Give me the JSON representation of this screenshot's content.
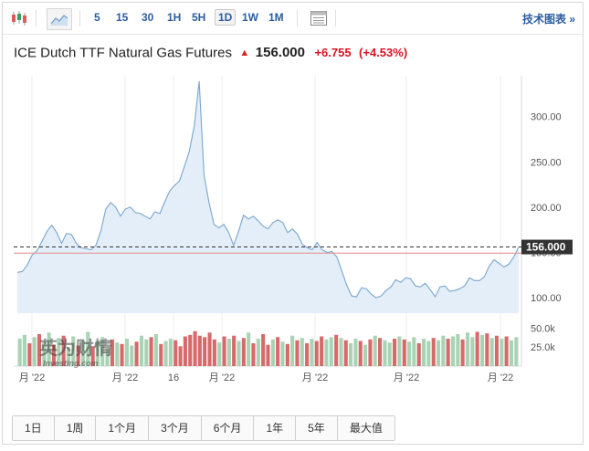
{
  "toolbar": {
    "candles_icon": "candlestick-icon",
    "area_icon": "area-chart-icon",
    "timeframes": [
      "5",
      "15",
      "30",
      "1H",
      "5H",
      "1D",
      "1W",
      "1M"
    ],
    "active_timeframe": "1D",
    "table_icon": "table-icon",
    "tech_link": "技术图表 »"
  },
  "quote": {
    "name": "ICE Dutch TTF Natural Gas Futures",
    "direction": "up",
    "price": "156.000",
    "change": "+6.755",
    "change_pct": "(+4.53%)"
  },
  "watermark": {
    "text": "英为财情",
    "sub": "Investing.com"
  },
  "ranges": [
    "1日",
    "1周",
    "1个月",
    "3个月",
    "6个月",
    "1年",
    "5年",
    "最大值"
  ],
  "colors": {
    "line": "#7aa6cf",
    "area": "#e3eef8",
    "up_volume": "#a9d3b4",
    "down_volume": "#d66a6a",
    "price_tag_bg": "#333333",
    "change": "#dd1111"
  },
  "chart_data": {
    "type": "area",
    "price_label": "156.000",
    "y_ticks": [
      "300.00",
      "250.00",
      "200.00",
      "150.00",
      "100.00"
    ],
    "volume_ticks": [
      "50.0k",
      "25.0k"
    ],
    "x_labels": [
      "月 '22",
      "月 '22",
      "16",
      "月 '22",
      "月 '22",
      "月 '22",
      "月 '22"
    ],
    "ylim": [
      83,
      345
    ],
    "volume_max": 60,
    "series": [
      {
        "values": [
          128,
          129,
          136,
          147,
          152,
          162,
          173,
          180,
          172,
          160,
          171,
          170,
          160,
          155,
          154,
          153,
          158,
          174,
          198,
          205,
          200,
          190,
          198,
          200,
          194,
          193,
          190,
          187,
          195,
          193,
          206,
          218,
          224,
          229,
          245,
          262,
          290,
          339,
          235,
          205,
          181,
          177,
          181,
          172,
          158,
          173,
          191,
          187,
          190,
          185,
          179,
          176,
          183,
          186,
          183,
          172,
          176,
          170,
          159,
          155,
          153,
          161,
          153,
          150,
          151,
          145,
          130,
          114,
          102,
          101,
          111,
          110,
          104,
          100,
          102,
          108,
          112,
          120,
          117,
          122,
          121,
          113,
          112,
          116,
          109,
          101,
          112,
          113,
          107,
          108,
          110,
          113,
          122,
          119,
          119,
          123,
          135,
          142,
          138,
          134,
          137,
          145,
          156
        ]
      }
    ],
    "volume": [
      {
        "v": 36,
        "d": "up"
      },
      {
        "v": 41,
        "d": "up"
      },
      {
        "v": 30,
        "d": "down"
      },
      {
        "v": 38,
        "d": "up"
      },
      {
        "v": 42,
        "d": "down"
      },
      {
        "v": 32,
        "d": "up"
      },
      {
        "v": 44,
        "d": "up"
      },
      {
        "v": 28,
        "d": "down"
      },
      {
        "v": 37,
        "d": "up"
      },
      {
        "v": 40,
        "d": "down"
      },
      {
        "v": 25,
        "d": "up"
      },
      {
        "v": 39,
        "d": "up"
      },
      {
        "v": 27,
        "d": "down"
      },
      {
        "v": 34,
        "d": "up"
      },
      {
        "v": 45,
        "d": "up"
      },
      {
        "v": 26,
        "d": "down"
      },
      {
        "v": 33,
        "d": "up"
      },
      {
        "v": 38,
        "d": "up"
      },
      {
        "v": 23,
        "d": "up"
      },
      {
        "v": 35,
        "d": "down"
      },
      {
        "v": 31,
        "d": "up"
      },
      {
        "v": 29,
        "d": "down"
      },
      {
        "v": 36,
        "d": "up"
      },
      {
        "v": 27,
        "d": "up"
      },
      {
        "v": 32,
        "d": "down"
      },
      {
        "v": 40,
        "d": "up"
      },
      {
        "v": 35,
        "d": "up"
      },
      {
        "v": 38,
        "d": "down"
      },
      {
        "v": 42,
        "d": "up"
      },
      {
        "v": 29,
        "d": "down"
      },
      {
        "v": 33,
        "d": "up"
      },
      {
        "v": 36,
        "d": "up"
      },
      {
        "v": 34,
        "d": "down"
      },
      {
        "v": 26,
        "d": "down"
      },
      {
        "v": 39,
        "d": "down"
      },
      {
        "v": 41,
        "d": "down"
      },
      {
        "v": 46,
        "d": "down"
      },
      {
        "v": 40,
        "d": "down"
      },
      {
        "v": 38,
        "d": "down"
      },
      {
        "v": 44,
        "d": "down"
      },
      {
        "v": 35,
        "d": "down"
      },
      {
        "v": 31,
        "d": "up"
      },
      {
        "v": 39,
        "d": "down"
      },
      {
        "v": 36,
        "d": "up"
      },
      {
        "v": 40,
        "d": "down"
      },
      {
        "v": 33,
        "d": "up"
      },
      {
        "v": 37,
        "d": "down"
      },
      {
        "v": 44,
        "d": "up"
      },
      {
        "v": 30,
        "d": "down"
      },
      {
        "v": 36,
        "d": "up"
      },
      {
        "v": 42,
        "d": "down"
      },
      {
        "v": 28,
        "d": "down"
      },
      {
        "v": 35,
        "d": "up"
      },
      {
        "v": 38,
        "d": "down"
      },
      {
        "v": 32,
        "d": "up"
      },
      {
        "v": 29,
        "d": "down"
      },
      {
        "v": 40,
        "d": "up"
      },
      {
        "v": 34,
        "d": "down"
      },
      {
        "v": 37,
        "d": "up"
      },
      {
        "v": 30,
        "d": "down"
      },
      {
        "v": 36,
        "d": "up"
      },
      {
        "v": 33,
        "d": "down"
      },
      {
        "v": 39,
        "d": "down"
      },
      {
        "v": 35,
        "d": "up"
      },
      {
        "v": 38,
        "d": "up"
      },
      {
        "v": 41,
        "d": "down"
      },
      {
        "v": 37,
        "d": "up"
      },
      {
        "v": 34,
        "d": "down"
      },
      {
        "v": 30,
        "d": "up"
      },
      {
        "v": 36,
        "d": "up"
      },
      {
        "v": 33,
        "d": "down"
      },
      {
        "v": 28,
        "d": "up"
      },
      {
        "v": 35,
        "d": "down"
      },
      {
        "v": 40,
        "d": "up"
      },
      {
        "v": 37,
        "d": "down"
      },
      {
        "v": 34,
        "d": "up"
      },
      {
        "v": 31,
        "d": "up"
      },
      {
        "v": 36,
        "d": "down"
      },
      {
        "v": 39,
        "d": "up"
      },
      {
        "v": 35,
        "d": "down"
      },
      {
        "v": 32,
        "d": "up"
      },
      {
        "v": 38,
        "d": "up"
      },
      {
        "v": 30,
        "d": "down"
      },
      {
        "v": 36,
        "d": "up"
      },
      {
        "v": 33,
        "d": "up"
      },
      {
        "v": 37,
        "d": "down"
      },
      {
        "v": 34,
        "d": "up"
      },
      {
        "v": 40,
        "d": "up"
      },
      {
        "v": 36,
        "d": "down"
      },
      {
        "v": 39,
        "d": "up"
      },
      {
        "v": 42,
        "d": "up"
      },
      {
        "v": 35,
        "d": "down"
      },
      {
        "v": 44,
        "d": "up"
      },
      {
        "v": 38,
        "d": "up"
      },
      {
        "v": 45,
        "d": "down"
      },
      {
        "v": 41,
        "d": "up"
      },
      {
        "v": 43,
        "d": "down"
      },
      {
        "v": 37,
        "d": "up"
      },
      {
        "v": 40,
        "d": "down"
      },
      {
        "v": 36,
        "d": "up"
      },
      {
        "v": 39,
        "d": "down"
      },
      {
        "v": 34,
        "d": "up"
      },
      {
        "v": 38,
        "d": "up"
      }
    ]
  }
}
